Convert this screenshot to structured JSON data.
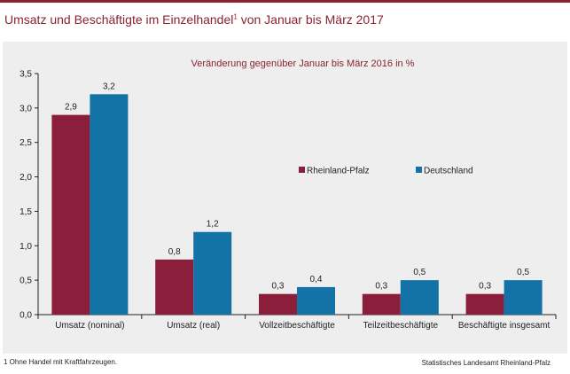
{
  "header": {
    "title": "Umsatz und Beschäftigte im Einzelhandel",
    "title_footnote_mark": "1",
    "title_suffix": " von Januar bis März 2017"
  },
  "colors": {
    "accent": "#8b2232",
    "rheinland_pfalz": "#8b1e3b",
    "deutschland": "#1372a6",
    "panel_bg": "#eeeeee"
  },
  "chart_data": {
    "type": "bar",
    "title": "Veränderung gegenüber Januar bis März 2016 in %",
    "categories": [
      "Umsatz (nominal)",
      "Umsatz (real)",
      "Vollzeitbeschäftigte",
      "Teilzeitbeschäftigte",
      "Beschäftigte insgesamt"
    ],
    "series": [
      {
        "name": "Rheinland-Pfalz",
        "values": [
          2.9,
          0.8,
          0.3,
          0.3,
          0.3
        ],
        "labels": [
          "2,9",
          "0,8",
          "0,3",
          "0,3",
          "0,3"
        ]
      },
      {
        "name": "Deutschland",
        "values": [
          3.2,
          1.2,
          0.4,
          0.5,
          0.5
        ],
        "labels": [
          "3,2",
          "1,2",
          "0,4",
          "0,5",
          "0,5"
        ]
      }
    ],
    "ylim": [
      0,
      3.5
    ],
    "yticks": [
      0,
      0.5,
      1.0,
      1.5,
      2.0,
      2.5,
      3.0,
      3.5
    ],
    "ytick_labels": [
      "0,0",
      "0,5",
      "1,0",
      "1,5",
      "2,0",
      "2,5",
      "3,0",
      "3,5"
    ],
    "xlabel": "",
    "ylabel": "",
    "grid": false,
    "legend": "inside-right"
  },
  "footnote": "1 Ohne Handel mit Kraftfahrzeugen.",
  "source": "Statistisches Landesamt Rheinland-Pfalz"
}
